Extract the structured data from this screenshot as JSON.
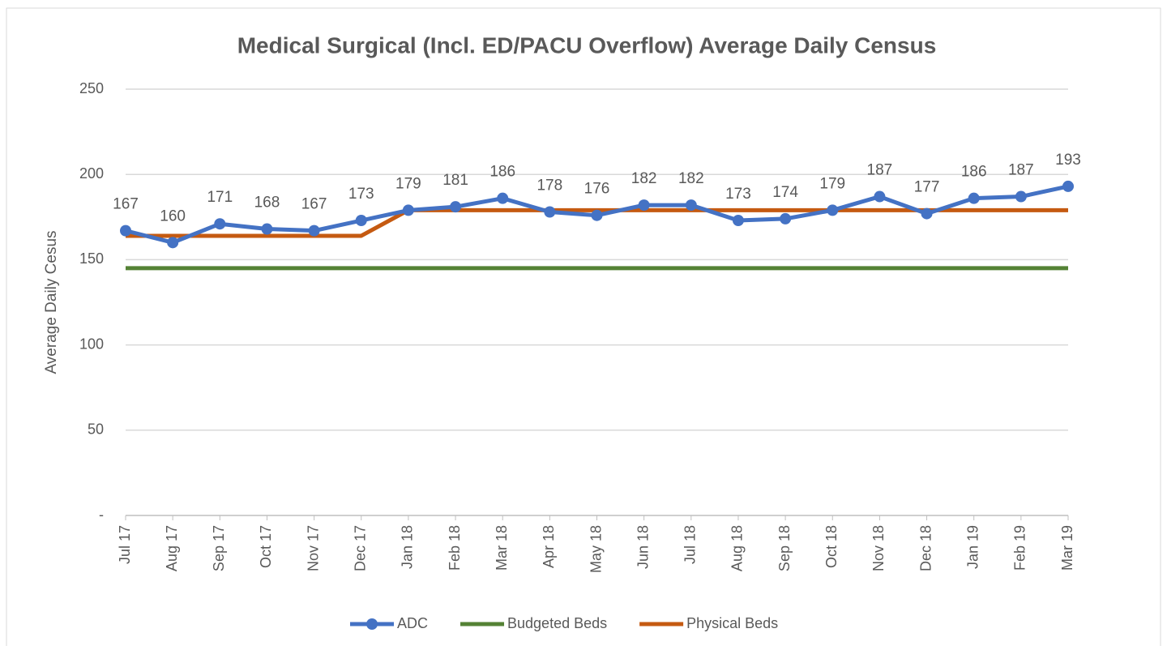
{
  "chart_data": {
    "type": "line",
    "title": "Medical Surgical (Incl. ED/PACU Overflow) Average Daily Census",
    "y_label": "Average Daily Cesus",
    "categories": [
      "Jul 17",
      "Aug 17",
      "Sep 17",
      "Oct 17",
      "Nov 17",
      "Dec 17",
      "Jan 18",
      "Feb 18",
      "Mar 18",
      "Apr 18",
      "May 18",
      "Jun 18",
      "Jul 18",
      "Aug 18",
      "Sep 18",
      "Oct 18",
      "Nov 18",
      "Dec 18",
      "Jan 19",
      "Feb 19",
      "Mar 19"
    ],
    "series": [
      {
        "name": "ADC",
        "color": "#4472c4",
        "marker": true,
        "data_labels": true,
        "values": [
          167,
          160,
          171,
          168,
          167,
          173,
          179,
          181,
          186,
          178,
          176,
          182,
          182,
          173,
          174,
          179,
          187,
          177,
          186,
          187,
          193
        ]
      },
      {
        "name": "Budgeted Beds",
        "color": "#548235",
        "values": [
          145,
          145,
          145,
          145,
          145,
          145,
          145,
          145,
          145,
          145,
          145,
          145,
          145,
          145,
          145,
          145,
          145,
          145,
          145,
          145,
          145
        ]
      },
      {
        "name": "Physical Beds",
        "color": "#c55a11",
        "values": [
          164,
          164,
          164,
          164,
          164,
          164,
          179,
          179,
          179,
          179,
          179,
          179,
          179,
          179,
          179,
          179,
          179,
          179,
          179,
          179,
          179
        ]
      }
    ],
    "ylim": [
      0,
      250
    ],
    "yticks": [
      {
        "value": 0,
        "label": "-"
      },
      50,
      100,
      150,
      200,
      250
    ],
    "grid": true,
    "legend": "bottom"
  }
}
